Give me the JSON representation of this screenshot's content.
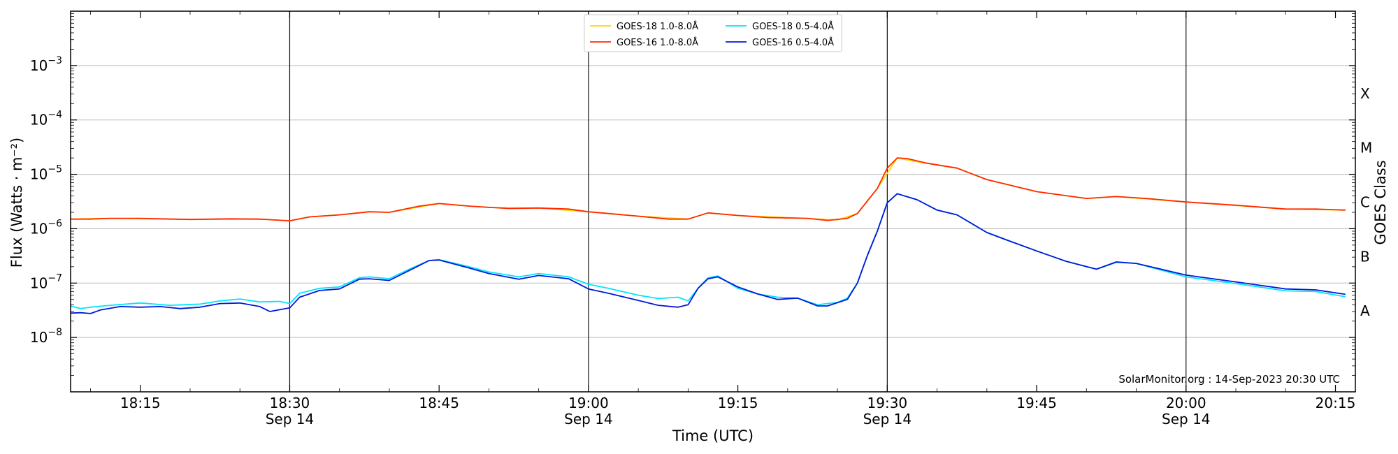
{
  "chart_data": {
    "type": "line",
    "title": "",
    "xlabel": "Time (UTC)",
    "ylabel": "Flux (Watts · m⁻²)",
    "ylabel_right": "GOES Class",
    "y_scale": "log",
    "ylim": [
      1e-09,
      0.01
    ],
    "xlim": [
      "2023-09-14 18:08",
      "2023-09-14 20:17"
    ],
    "grid": "horizontal at decades; vertical at half-hours",
    "legend_position": "top-center",
    "x_ticks": [
      {
        "t": "2023-09-14 18:15",
        "label": "18:15",
        "date_label": ""
      },
      {
        "t": "2023-09-14 18:30",
        "label": "18:30",
        "date_label": "Sep 14"
      },
      {
        "t": "2023-09-14 18:45",
        "label": "18:45",
        "date_label": ""
      },
      {
        "t": "2023-09-14 19:00",
        "label": "19:00",
        "date_label": "Sep 14"
      },
      {
        "t": "2023-09-14 19:15",
        "label": "19:15",
        "date_label": ""
      },
      {
        "t": "2023-09-14 19:30",
        "label": "19:30",
        "date_label": "Sep 14"
      },
      {
        "t": "2023-09-14 19:45",
        "label": "19:45",
        "date_label": ""
      },
      {
        "t": "2023-09-14 20:00",
        "label": "20:00",
        "date_label": "Sep 14"
      },
      {
        "t": "2023-09-14 20:15",
        "label": "20:15",
        "date_label": ""
      }
    ],
    "y_ticks": [
      {
        "value": 1e-08,
        "base": "10",
        "exp": "−8"
      },
      {
        "value": 1e-07,
        "base": "10",
        "exp": "−7"
      },
      {
        "value": 1e-06,
        "base": "10",
        "exp": "−6"
      },
      {
        "value": 1e-05,
        "base": "10",
        "exp": "−5"
      },
      {
        "value": 0.0001,
        "base": "10",
        "exp": "−4"
      },
      {
        "value": 0.001,
        "base": "10",
        "exp": "−3"
      }
    ],
    "goes_classes": [
      {
        "label": "A",
        "flux": 3.16e-08
      },
      {
        "label": "B",
        "flux": 3.16e-07
      },
      {
        "label": "C",
        "flux": 3.16e-06
      },
      {
        "label": "M",
        "flux": 3.16e-05
      },
      {
        "label": "X",
        "flux": 0.000316
      }
    ],
    "annotation": "SolarMonitor.org : 14-Sep-2023 20:30 UTC",
    "series": [
      {
        "name": "GOES-18 1.0-8.0Å",
        "color": "#ffd700",
        "points": [
          [
            "2023-09-14 18:08",
            1.5e-06
          ],
          [
            "2023-09-14 18:12",
            1.55e-06
          ],
          [
            "2023-09-14 18:20",
            1.48e-06
          ],
          [
            "2023-09-14 18:27",
            1.5e-06
          ],
          [
            "2023-09-14 18:30",
            1.4e-06
          ],
          [
            "2023-09-14 18:32",
            1.65e-06
          ],
          [
            "2023-09-14 18:35",
            1.8e-06
          ],
          [
            "2023-09-14 18:38",
            2.05e-06
          ],
          [
            "2023-09-14 18:40",
            2e-06
          ],
          [
            "2023-09-14 18:45",
            2.9e-06
          ],
          [
            "2023-09-14 18:50",
            2.45e-06
          ],
          [
            "2023-09-14 18:55",
            2.4e-06
          ],
          [
            "2023-09-14 19:00",
            2.05e-06
          ],
          [
            "2023-09-14 19:05",
            1.7e-06
          ],
          [
            "2023-09-14 19:10",
            1.5e-06
          ],
          [
            "2023-09-14 19:12",
            1.95e-06
          ],
          [
            "2023-09-14 19:15",
            1.75e-06
          ],
          [
            "2023-09-14 19:20",
            1.6e-06
          ],
          [
            "2023-09-14 19:25",
            1.45e-06
          ],
          [
            "2023-09-14 19:27",
            1.9e-06
          ],
          [
            "2023-09-14 19:29",
            5.5e-06
          ],
          [
            "2023-09-14 19:31",
            2e-05
          ],
          [
            "2023-09-14 19:33",
            1.7e-05
          ],
          [
            "2023-09-14 19:37",
            1.3e-05
          ],
          [
            "2023-09-14 19:40",
            8e-06
          ],
          [
            "2023-09-14 19:45",
            4.8e-06
          ],
          [
            "2023-09-14 19:50",
            3.6e-06
          ],
          [
            "2023-09-14 19:53",
            3.9e-06
          ],
          [
            "2023-09-14 20:00",
            3.1e-06
          ],
          [
            "2023-09-14 20:10",
            2.3e-06
          ],
          [
            "2023-09-14 20:16",
            2.2e-06
          ]
        ]
      },
      {
        "name": "GOES-16 1.0-8.0Å",
        "color": "#ff2a00",
        "points": [
          [
            "2023-09-14 18:08",
            1.5e-06
          ],
          [
            "2023-09-14 18:10",
            1.5e-06
          ],
          [
            "2023-09-14 18:12",
            1.55e-06
          ],
          [
            "2023-09-14 18:15",
            1.55e-06
          ],
          [
            "2023-09-14 18:20",
            1.48e-06
          ],
          [
            "2023-09-14 18:24",
            1.52e-06
          ],
          [
            "2023-09-14 18:27",
            1.5e-06
          ],
          [
            "2023-09-14 18:30",
            1.4e-06
          ],
          [
            "2023-09-14 18:32",
            1.65e-06
          ],
          [
            "2023-09-14 18:35",
            1.8e-06
          ],
          [
            "2023-09-14 18:38",
            2.05e-06
          ],
          [
            "2023-09-14 18:40",
            2e-06
          ],
          [
            "2023-09-14 18:43",
            2.6e-06
          ],
          [
            "2023-09-14 18:45",
            2.9e-06
          ],
          [
            "2023-09-14 18:48",
            2.6e-06
          ],
          [
            "2023-09-14 18:52",
            2.35e-06
          ],
          [
            "2023-09-14 18:55",
            2.4e-06
          ],
          [
            "2023-09-14 18:58",
            2.3e-06
          ],
          [
            "2023-09-14 19:00",
            2.05e-06
          ],
          [
            "2023-09-14 19:05",
            1.7e-06
          ],
          [
            "2023-09-14 19:08",
            1.5e-06
          ],
          [
            "2023-09-14 19:10",
            1.5e-06
          ],
          [
            "2023-09-14 19:12",
            1.95e-06
          ],
          [
            "2023-09-14 19:15",
            1.75e-06
          ],
          [
            "2023-09-14 19:18",
            1.6e-06
          ],
          [
            "2023-09-14 19:22",
            1.55e-06
          ],
          [
            "2023-09-14 19:24",
            1.42e-06
          ],
          [
            "2023-09-14 19:26",
            1.55e-06
          ],
          [
            "2023-09-14 19:27",
            1.9e-06
          ],
          [
            "2023-09-14 19:29",
            5.5e-06
          ],
          [
            "2023-09-14 19:30",
            1.3e-05
          ],
          [
            "2023-09-14 19:31",
            2e-05
          ],
          [
            "2023-09-14 19:32",
            1.95e-05
          ],
          [
            "2023-09-14 19:34",
            1.6e-05
          ],
          [
            "2023-09-14 19:37",
            1.3e-05
          ],
          [
            "2023-09-14 19:40",
            8e-06
          ],
          [
            "2023-09-14 19:45",
            4.8e-06
          ],
          [
            "2023-09-14 19:50",
            3.6e-06
          ],
          [
            "2023-09-14 19:53",
            3.9e-06
          ],
          [
            "2023-09-14 19:56",
            3.6e-06
          ],
          [
            "2023-09-14 20:00",
            3.1e-06
          ],
          [
            "2023-09-14 20:05",
            2.7e-06
          ],
          [
            "2023-09-14 20:10",
            2.3e-06
          ],
          [
            "2023-09-14 20:13",
            2.3e-06
          ],
          [
            "2023-09-14 20:16",
            2.2e-06
          ]
        ]
      },
      {
        "name": "GOES-18 0.5-4.0Å",
        "color": "#00e5ff",
        "points": [
          [
            "2023-09-14 18:08",
            3.8e-08
          ],
          [
            "2023-09-14 18:09",
            3.4e-08
          ],
          [
            "2023-09-14 18:10",
            3.6e-08
          ],
          [
            "2023-09-14 18:12",
            3.9e-08
          ],
          [
            "2023-09-14 18:15",
            4.3e-08
          ],
          [
            "2023-09-14 18:18",
            3.9e-08
          ],
          [
            "2023-09-14 18:21",
            4.1e-08
          ],
          [
            "2023-09-14 18:23",
            4.7e-08
          ],
          [
            "2023-09-14 18:25",
            5.1e-08
          ],
          [
            "2023-09-14 18:27",
            4.5e-08
          ],
          [
            "2023-09-14 18:29",
            4.6e-08
          ],
          [
            "2023-09-14 18:30",
            4.2e-08
          ],
          [
            "2023-09-14 18:31",
            6.5e-08
          ],
          [
            "2023-09-14 18:33",
            8e-08
          ],
          [
            "2023-09-14 18:35",
            8.5e-08
          ],
          [
            "2023-09-14 18:37",
            1.25e-07
          ],
          [
            "2023-09-14 18:38",
            1.3e-07
          ],
          [
            "2023-09-14 18:40",
            1.2e-07
          ],
          [
            "2023-09-14 18:42",
            1.8e-07
          ],
          [
            "2023-09-14 18:44",
            2.6e-07
          ],
          [
            "2023-09-14 18:45",
            2.7e-07
          ],
          [
            "2023-09-14 18:48",
            2e-07
          ],
          [
            "2023-09-14 18:50",
            1.6e-07
          ],
          [
            "2023-09-14 18:53",
            1.3e-07
          ],
          [
            "2023-09-14 18:55",
            1.5e-07
          ],
          [
            "2023-09-14 18:58",
            1.3e-07
          ],
          [
            "2023-09-14 19:00",
            9.5e-08
          ],
          [
            "2023-09-14 19:02",
            8e-08
          ],
          [
            "2023-09-14 19:05",
            6e-08
          ],
          [
            "2023-09-14 19:07",
            5.2e-08
          ],
          [
            "2023-09-14 19:09",
            5.5e-08
          ],
          [
            "2023-09-14 19:10",
            4.7e-08
          ],
          [
            "2023-09-14 19:11",
            8e-08
          ],
          [
            "2023-09-14 19:12",
            1.25e-07
          ],
          [
            "2023-09-14 19:13",
            1.35e-07
          ],
          [
            "2023-09-14 19:15",
            8e-08
          ],
          [
            "2023-09-14 19:17",
            6.3e-08
          ],
          [
            "2023-09-14 19:19",
            5.5e-08
          ],
          [
            "2023-09-14 19:21",
            5.3e-08
          ],
          [
            "2023-09-14 19:23",
            4e-08
          ],
          [
            "2023-09-14 19:25",
            4.4e-08
          ],
          [
            "2023-09-14 19:26",
            5.3e-08
          ],
          [
            "2023-09-14 19:27",
            1e-07
          ],
          [
            "2023-09-14 19:28",
            3.2e-07
          ],
          [
            "2023-09-14 19:29",
            9e-07
          ],
          [
            "2023-09-14 19:30",
            3e-06
          ],
          [
            "2023-09-14 19:31",
            4.4e-06
          ],
          [
            "2023-09-14 19:33",
            3.4e-06
          ],
          [
            "2023-09-14 19:35",
            2.2e-06
          ],
          [
            "2023-09-14 19:37",
            1.8e-06
          ],
          [
            "2023-09-14 19:40",
            8.5e-07
          ],
          [
            "2023-09-14 19:42",
            6.2e-07
          ],
          [
            "2023-09-14 19:45",
            3.9e-07
          ],
          [
            "2023-09-14 19:48",
            2.5e-07
          ],
          [
            "2023-09-14 19:51",
            1.8e-07
          ],
          [
            "2023-09-14 19:53",
            2.4e-07
          ],
          [
            "2023-09-14 19:55",
            2.3e-07
          ],
          [
            "2023-09-14 20:00",
            1.3e-07
          ],
          [
            "2023-09-14 20:05",
            9.8e-08
          ],
          [
            "2023-09-14 20:10",
            7.2e-08
          ],
          [
            "2023-09-14 20:13",
            7e-08
          ],
          [
            "2023-09-14 20:16",
            5.6e-08
          ]
        ]
      },
      {
        "name": "GOES-16 0.5-4.0Å",
        "color": "#0018d8",
        "points": [
          [
            "2023-09-14 18:08",
            2.8e-08
          ],
          [
            "2023-09-14 18:09",
            2.85e-08
          ],
          [
            "2023-09-14 18:10",
            2.75e-08
          ],
          [
            "2023-09-14 18:11",
            3.2e-08
          ],
          [
            "2023-09-14 18:13",
            3.7e-08
          ],
          [
            "2023-09-14 18:15",
            3.6e-08
          ],
          [
            "2023-09-14 18:17",
            3.7e-08
          ],
          [
            "2023-09-14 18:19",
            3.4e-08
          ],
          [
            "2023-09-14 18:21",
            3.6e-08
          ],
          [
            "2023-09-14 18:23",
            4.2e-08
          ],
          [
            "2023-09-14 18:25",
            4.3e-08
          ],
          [
            "2023-09-14 18:27",
            3.7e-08
          ],
          [
            "2023-09-14 18:28",
            3e-08
          ],
          [
            "2023-09-14 18:30",
            3.5e-08
          ],
          [
            "2023-09-14 18:31",
            5.5e-08
          ],
          [
            "2023-09-14 18:33",
            7.3e-08
          ],
          [
            "2023-09-14 18:35",
            7.8e-08
          ],
          [
            "2023-09-14 18:37",
            1.18e-07
          ],
          [
            "2023-09-14 18:38",
            1.2e-07
          ],
          [
            "2023-09-14 18:40",
            1.12e-07
          ],
          [
            "2023-09-14 18:42",
            1.7e-07
          ],
          [
            "2023-09-14 18:44",
            2.6e-07
          ],
          [
            "2023-09-14 18:45",
            2.65e-07
          ],
          [
            "2023-09-14 18:48",
            1.9e-07
          ],
          [
            "2023-09-14 18:50",
            1.5e-07
          ],
          [
            "2023-09-14 18:53",
            1.18e-07
          ],
          [
            "2023-09-14 18:55",
            1.38e-07
          ],
          [
            "2023-09-14 18:58",
            1.2e-07
          ],
          [
            "2023-09-14 19:00",
            7.8e-08
          ],
          [
            "2023-09-14 19:02",
            6.5e-08
          ],
          [
            "2023-09-14 19:05",
            4.8e-08
          ],
          [
            "2023-09-14 19:07",
            3.9e-08
          ],
          [
            "2023-09-14 19:09",
            3.6e-08
          ],
          [
            "2023-09-14 19:10",
            4e-08
          ],
          [
            "2023-09-14 19:11",
            8e-08
          ],
          [
            "2023-09-14 19:12",
            1.2e-07
          ],
          [
            "2023-09-14 19:13",
            1.3e-07
          ],
          [
            "2023-09-14 19:15",
            8.5e-08
          ],
          [
            "2023-09-14 19:17",
            6.3e-08
          ],
          [
            "2023-09-14 19:19",
            5e-08
          ],
          [
            "2023-09-14 19:21",
            5.3e-08
          ],
          [
            "2023-09-14 19:23",
            3.8e-08
          ],
          [
            "2023-09-14 19:24",
            3.8e-08
          ],
          [
            "2023-09-14 19:26",
            5e-08
          ],
          [
            "2023-09-14 19:27",
            1e-07
          ],
          [
            "2023-09-14 19:28",
            3.2e-07
          ],
          [
            "2023-09-14 19:29",
            9e-07
          ],
          [
            "2023-09-14 19:30",
            3e-06
          ],
          [
            "2023-09-14 19:31",
            4.4e-06
          ],
          [
            "2023-09-14 19:33",
            3.4e-06
          ],
          [
            "2023-09-14 19:35",
            2.2e-06
          ],
          [
            "2023-09-14 19:37",
            1.8e-06
          ],
          [
            "2023-09-14 19:40",
            8.5e-07
          ],
          [
            "2023-09-14 19:42",
            6.2e-07
          ],
          [
            "2023-09-14 19:45",
            3.9e-07
          ],
          [
            "2023-09-14 19:48",
            2.5e-07
          ],
          [
            "2023-09-14 19:51",
            1.8e-07
          ],
          [
            "2023-09-14 19:53",
            2.45e-07
          ],
          [
            "2023-09-14 19:55",
            2.3e-07
          ],
          [
            "2023-09-14 20:00",
            1.4e-07
          ],
          [
            "2023-09-14 20:05",
            1.05e-07
          ],
          [
            "2023-09-14 20:10",
            7.8e-08
          ],
          [
            "2023-09-14 20:13",
            7.5e-08
          ],
          [
            "2023-09-14 20:16",
            6.2e-08
          ]
        ]
      }
    ]
  }
}
